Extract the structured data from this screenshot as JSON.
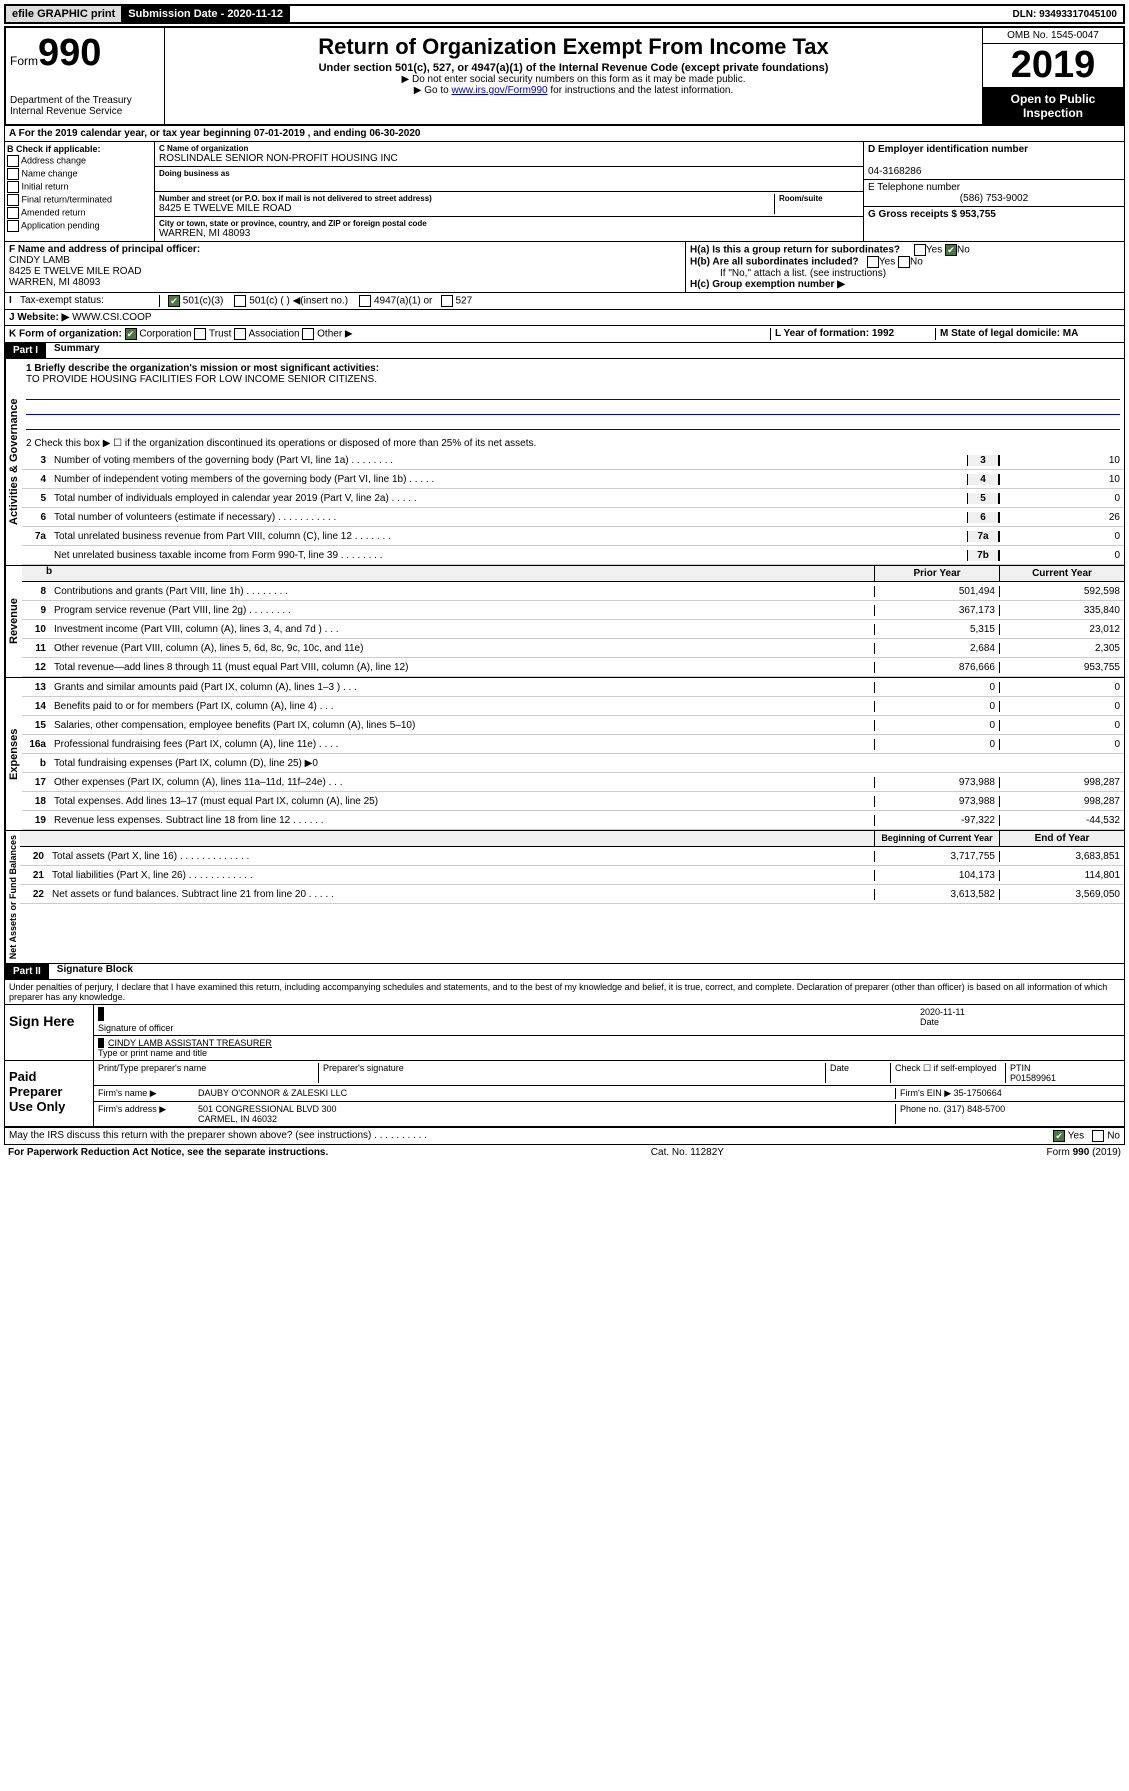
{
  "top": {
    "efile": "efile GRAPHIC print",
    "submission_label": "Submission Date - 2020-11-12",
    "dln": "DLN: 93493317045100"
  },
  "header": {
    "form_prefix": "Form",
    "form_number": "990",
    "dept1": "Department of the Treasury",
    "dept2": "Internal Revenue Service",
    "title": "Return of Organization Exempt From Income Tax",
    "subtitle": "Under section 501(c), 527, or 4947(a)(1) of the Internal Revenue Code (except private foundations)",
    "note1": "▶ Do not enter social security numbers on this form as it may be made public.",
    "note2": "▶ Go to www.irs.gov/Form990 for instructions and the latest information.",
    "link": "www.irs.gov/Form990",
    "omb": "OMB No. 1545-0047",
    "year": "2019",
    "open": "Open to Public Inspection"
  },
  "rowA": "A For the 2019 calendar year, or tax year beginning 07-01-2019    , and ending 06-30-2020",
  "colB": {
    "header": "B Check if applicable:",
    "items": [
      "Address change",
      "Name change",
      "Initial return",
      "Final return/terminated",
      "Amended return",
      "Application pending"
    ]
  },
  "colC": {
    "name_label": "C Name of organization",
    "name": "ROSLINDALE SENIOR NON-PROFIT HOUSING INC",
    "dba_label": "Doing business as",
    "dba": "",
    "addr_label": "Number and street (or P.O. box if mail is not delivered to street address)",
    "room_label": "Room/suite",
    "addr": "8425 E TWELVE MILE ROAD",
    "city_label": "City or town, state or province, country, and ZIP or foreign postal code",
    "city": "WARREN, MI  48093"
  },
  "colD": {
    "ein_label": "D Employer identification number",
    "ein": "04-3168286",
    "tel_label": "E Telephone number",
    "tel": "(586) 753-9002",
    "gross_label": "G Gross receipts $ 953,755"
  },
  "rowF": {
    "label": "F  Name and address of principal officer:",
    "name": "CINDY LAMB",
    "addr1": "8425 E TWELVE MILE ROAD",
    "addr2": "WARREN, MI  48093"
  },
  "rowH": {
    "a": "H(a)  Is this a group return for subordinates?",
    "a_yes": "Yes",
    "a_no": "No",
    "b": "H(b)  Are all subordinates included?",
    "b_yes": "Yes",
    "b_no": "No",
    "note": "If \"No,\" attach a list. (see instructions)",
    "c": "H(c)  Group exemption number ▶"
  },
  "tax_exempt": {
    "label": "Tax-exempt status:",
    "opt1": "501(c)(3)",
    "opt2": "501(c) (   ) ◀(insert no.)",
    "opt3": "4947(a)(1) or",
    "opt4": "527"
  },
  "rowJ": {
    "label": "J Website: ▶",
    "value": "WWW.CSI.COOP"
  },
  "rowK": {
    "label": "K Form of organization:",
    "opts": [
      "Corporation",
      "Trust",
      "Association",
      "Other ▶"
    ],
    "L": "L Year of formation: 1992",
    "M": "M State of legal domicile: MA"
  },
  "part1": {
    "header": "Part I",
    "title": "Summary",
    "line1_label": "1  Briefly describe the organization's mission or most significant activities:",
    "line1_value": "TO PROVIDE HOUSING FACILITIES FOR LOW INCOME SENIOR CITIZENS.",
    "line2": "2  Check this box ▶ ☐  if the organization discontinued its operations or disposed of more than 25% of its net assets."
  },
  "governance": {
    "label": "Activities & Governance",
    "rows": [
      {
        "n": "3",
        "d": "Number of voting members of the governing body (Part VI, line 1a)  .  .  .  .  .  .  .  .",
        "box": "3",
        "v": "10"
      },
      {
        "n": "4",
        "d": "Number of independent voting members of the governing body (Part VI, line 1b)  .  .  .  .  .",
        "box": "4",
        "v": "10"
      },
      {
        "n": "5",
        "d": "Total number of individuals employed in calendar year 2019 (Part V, line 2a)  .  .  .  .  .",
        "box": "5",
        "v": "0"
      },
      {
        "n": "6",
        "d": "Total number of volunteers (estimate if necessary)  .  .  .  .  .  .  .  .  .  .  .",
        "box": "6",
        "v": "26"
      },
      {
        "n": "7a",
        "d": "Total unrelated business revenue from Part VIII, column (C), line 12  .  .  .  .  .  .  .",
        "box": "7a",
        "v": "0"
      },
      {
        "n": "",
        "d": "Net unrelated business taxable income from Form 990-T, line 39  .  .  .  .  .  .  .  .",
        "box": "7b",
        "v": "0"
      }
    ]
  },
  "revenue": {
    "label": "Revenue",
    "h1": "Prior Year",
    "h2": "Current Year",
    "rows": [
      {
        "n": "8",
        "d": "Contributions and grants (Part VIII, line 1h)  .  .  .  .  .  .  .  .",
        "v1": "501,494",
        "v2": "592,598"
      },
      {
        "n": "9",
        "d": "Program service revenue (Part VIII, line 2g)  .  .  .  .  .  .  .  .",
        "v1": "367,173",
        "v2": "335,840"
      },
      {
        "n": "10",
        "d": "Investment income (Part VIII, column (A), lines 3, 4, and 7d )  .  .  .",
        "v1": "5,315",
        "v2": "23,012"
      },
      {
        "n": "11",
        "d": "Other revenue (Part VIII, column (A), lines 5, 6d, 8c, 9c, 10c, and 11e)",
        "v1": "2,684",
        "v2": "2,305"
      },
      {
        "n": "12",
        "d": "Total revenue—add lines 8 through 11 (must equal Part VIII, column (A), line 12)",
        "v1": "876,666",
        "v2": "953,755"
      }
    ]
  },
  "expenses": {
    "label": "Expenses",
    "rows": [
      {
        "n": "13",
        "d": "Grants and similar amounts paid (Part IX, column (A), lines 1–3 )  .  .  .",
        "v1": "0",
        "v2": "0"
      },
      {
        "n": "14",
        "d": "Benefits paid to or for members (Part IX, column (A), line 4)  .  .  .",
        "v1": "0",
        "v2": "0"
      },
      {
        "n": "15",
        "d": "Salaries, other compensation, employee benefits (Part IX, column (A), lines 5–10)",
        "v1": "0",
        "v2": "0"
      },
      {
        "n": "16a",
        "d": "Professional fundraising fees (Part IX, column (A), line 11e)  .  .  .  .",
        "v1": "0",
        "v2": "0"
      },
      {
        "n": "b",
        "d": "Total fundraising expenses (Part IX, column (D), line 25) ▶0",
        "v1": "",
        "v2": "",
        "shaded": true
      },
      {
        "n": "17",
        "d": "Other expenses (Part IX, column (A), lines 11a–11d, 11f–24e)  .  .  .",
        "v1": "973,988",
        "v2": "998,287"
      },
      {
        "n": "18",
        "d": "Total expenses. Add lines 13–17 (must equal Part IX, column (A), line 25)",
        "v1": "973,988",
        "v2": "998,287"
      },
      {
        "n": "19",
        "d": "Revenue less expenses. Subtract line 18 from line 12  .  .  .  .  .  .",
        "v1": "-97,322",
        "v2": "-44,532"
      }
    ]
  },
  "netassets": {
    "label": "Net Assets or Fund Balances",
    "h1": "Beginning of Current Year",
    "h2": "End of Year",
    "rows": [
      {
        "n": "20",
        "d": "Total assets (Part X, line 16)  .  .  .  .  .  .  .  .  .  .  .  .  .",
        "v1": "3,717,755",
        "v2": "3,683,851"
      },
      {
        "n": "21",
        "d": "Total liabilities (Part X, line 26)  .  .  .  .  .  .  .  .  .  .  .  .",
        "v1": "104,173",
        "v2": "114,801"
      },
      {
        "n": "22",
        "d": "Net assets or fund balances. Subtract line 21 from line 20  .  .  .  .  .",
        "v1": "3,613,582",
        "v2": "3,569,050"
      }
    ]
  },
  "part2": {
    "header": "Part II",
    "title": "Signature Block",
    "declaration": "Under penalties of perjury, I declare that I have examined this return, including accompanying schedules and statements, and to the best of my knowledge and belief, it is true, correct, and complete. Declaration of preparer (other than officer) is based on all information of which preparer has any knowledge."
  },
  "sign": {
    "label": "Sign Here",
    "sig_label": "Signature of officer",
    "date": "2020-11-11",
    "date_label": "Date",
    "name": "CINDY LAMB  ASSISTANT TREASURER",
    "name_label": "Type or print name and title"
  },
  "preparer": {
    "label": "Paid Preparer Use Only",
    "h1": "Print/Type preparer's name",
    "h2": "Preparer's signature",
    "h3": "Date",
    "check_label": "Check ☐ if self-employed",
    "ptin_label": "PTIN",
    "ptin": "P01589961",
    "firm_name_label": "Firm's name    ▶",
    "firm_name": "DAUBY O'CONNOR & ZALESKI LLC",
    "firm_ein_label": "Firm's EIN ▶",
    "firm_ein": "35-1750664",
    "firm_addr_label": "Firm's address ▶",
    "firm_addr1": "501 CONGRESSIONAL BLVD 300",
    "firm_addr2": "CARMEL, IN  46032",
    "phone_label": "Phone no.",
    "phone": "(317) 848-5700"
  },
  "discuss": {
    "q": "May the IRS discuss this return with the preparer shown above? (see instructions)  .  .  .  .  .  .  .  .  .  .",
    "yes": "Yes",
    "no": "No"
  },
  "footer": {
    "left": "For Paperwork Reduction Act Notice, see the separate instructions.",
    "mid": "Cat. No. 11282Y",
    "right": "Form 990 (2019)"
  }
}
